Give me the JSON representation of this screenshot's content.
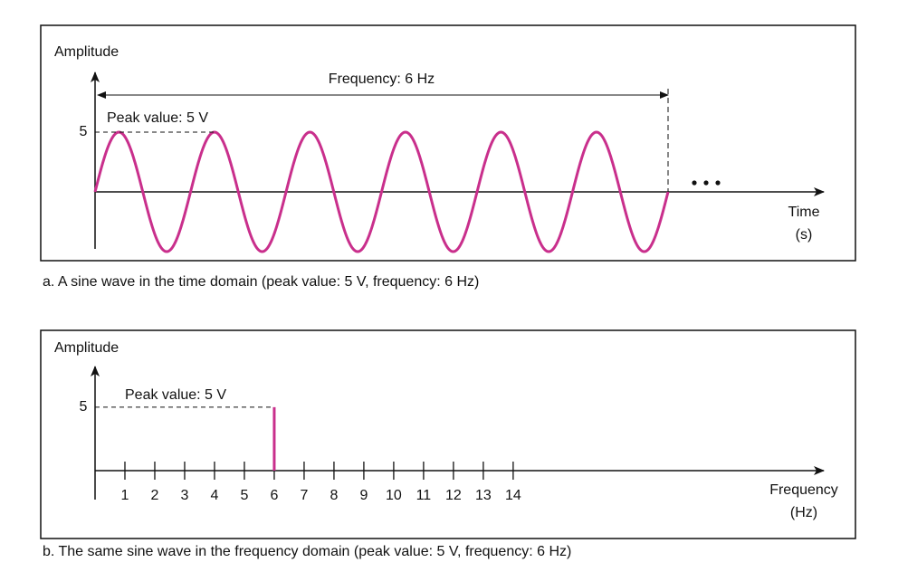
{
  "chart_data": [
    {
      "type": "sine",
      "ylabel": "Amplitude",
      "xlabel": [
        "Time",
        "(s)"
      ],
      "annotations": [
        "Frequency: 6 Hz",
        "Peak value: 5 V"
      ],
      "amplitude": 5,
      "frequency": 6,
      "color": "#c92f8c",
      "ylim": [
        -5,
        10
      ],
      "yticks": [
        5
      ],
      "caption": "a. A sine wave in the time domain (peak value: 5 V, frequency: 6 Hz)"
    },
    {
      "type": "bar",
      "ylabel": "Amplitude",
      "xlabel": [
        "Frequency",
        "(Hz)"
      ],
      "annotations": [
        "Peak value: 5 V"
      ],
      "x": [
        6
      ],
      "values": [
        5
      ],
      "color": "#c92f8c",
      "xlim": [
        0,
        24.4
      ],
      "xticks": [
        1,
        2,
        3,
        4,
        5,
        6,
        7,
        8,
        9,
        10,
        11,
        12,
        13,
        14
      ],
      "ylim": [
        -2.3,
        8.2
      ],
      "yticks": [
        5
      ],
      "caption": "b. The same sine wave in the frequency domain (peak value: 5 V, frequency: 6 Hz)"
    }
  ]
}
